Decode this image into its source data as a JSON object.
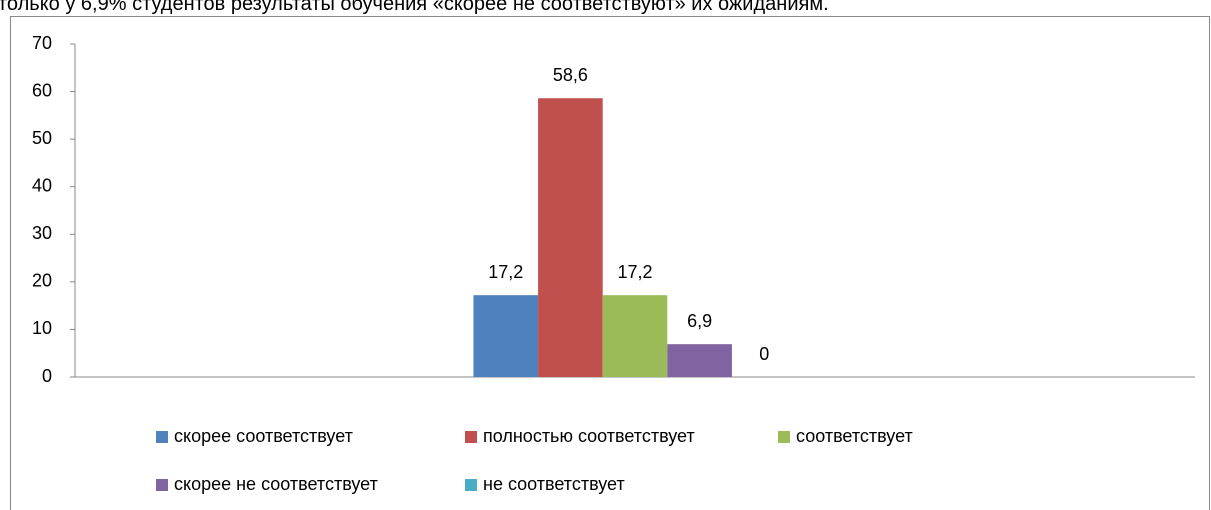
{
  "caption": "только у 6,9% студентов результаты обучения «скорее не соответствуют» их ожиданиям.",
  "chart_data": {
    "type": "bar",
    "categories": [
      null
    ],
    "series": [
      {
        "name": "скорее соответствует",
        "color": "#4f81bd",
        "values": [
          17.2
        ],
        "value_labels": [
          "17,2"
        ]
      },
      {
        "name": "полностью соответствует",
        "color": "#c0504d",
        "values": [
          58.6
        ],
        "value_labels": [
          "58,6"
        ]
      },
      {
        "name": "соответствует",
        "color": "#9bbb59",
        "values": [
          17.2
        ],
        "value_labels": [
          "17,2"
        ]
      },
      {
        "name": "скорее не соответствует",
        "color": "#8064a2",
        "values": [
          6.9
        ],
        "value_labels": [
          "6,9"
        ]
      },
      {
        "name": "не соответствует",
        "color": "#4bacc6",
        "values": [
          0
        ],
        "value_labels": [
          "0"
        ]
      }
    ],
    "ylim": [
      0,
      70
    ],
    "yticks": [
      0,
      10,
      20,
      30,
      40,
      50,
      60,
      70
    ],
    "grid": false
  }
}
